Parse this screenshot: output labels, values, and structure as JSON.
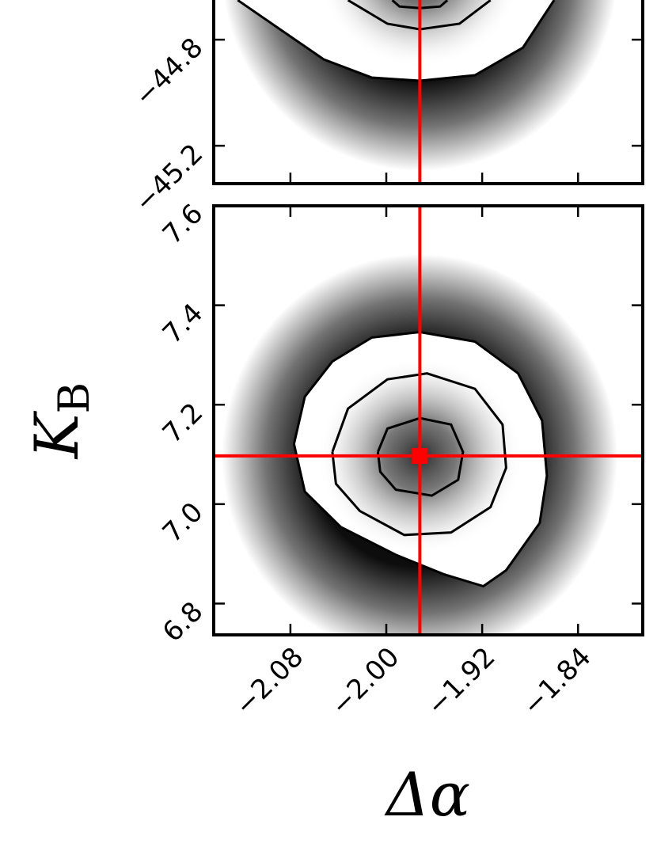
{
  "chart_data": [
    {
      "type": "contour",
      "xlim": [
        -2.144,
        -1.786
      ],
      "ylim": [
        -45.343,
        -43.725
      ],
      "xticks": [
        -2.08,
        -2.0,
        -1.92,
        -1.84
      ],
      "yticks": [
        {
          "value": -45.2,
          "label": "−45.2"
        },
        {
          "value": -44.8,
          "label": "−44.8"
        }
      ],
      "contour_color": "#000000",
      "truth_color": "#ff0000",
      "truth": {
        "x": -1.972
      },
      "contours": [
        {
          "x": [
            -2.124,
            -2.052,
            -2.012,
            -1.972,
            -1.926,
            -1.886,
            -1.86
          ],
          "y": [
            -44.651,
            -44.875,
            -44.943,
            -44.955,
            -44.934,
            -44.83,
            -44.651
          ]
        },
        {
          "x": [
            -2.032,
            -1.999,
            -1.972,
            -1.939,
            -1.913
          ],
          "y": [
            -44.651,
            -44.74,
            -44.761,
            -44.74,
            -44.651
          ]
        },
        {
          "x": [
            -1.995,
            -1.989,
            -1.972,
            -1.955,
            -1.949
          ],
          "y": [
            -44.651,
            -44.675,
            -44.681,
            -44.675,
            -44.651
          ]
        }
      ]
    },
    {
      "type": "contour",
      "ylabel": "K",
      "ylabel_sub": "B",
      "xlabel": "Δα",
      "xlim": [
        -2.144,
        -1.786
      ],
      "ylim": [
        6.737,
        7.6
      ],
      "xticks": [
        {
          "value": -2.08,
          "label": "−2.08"
        },
        {
          "value": -2.0,
          "label": "−2.00"
        },
        {
          "value": -1.92,
          "label": "−1.92"
        },
        {
          "value": -1.84,
          "label": "−1.84"
        }
      ],
      "yticks": [
        6.8,
        {
          "value": 7.0,
          "label": "7.0"
        },
        7.2,
        7.4,
        7.6
      ],
      "contour_color": "#000000",
      "truth_color": "#ff0000",
      "truth": {
        "x": -1.972,
        "y": 7.097
      },
      "contours": [
        {
          "x": [
            -2.077,
            -2.068,
            -2.045,
            -2.012,
            -1.972,
            -1.926,
            -1.89,
            -1.87,
            -1.866,
            -1.872,
            -1.9,
            -1.919,
            -1.952,
            -1.992,
            -2.038,
            -2.068,
            -2.077
          ],
          "y": [
            7.121,
            7.216,
            7.287,
            7.335,
            7.346,
            7.327,
            7.263,
            7.168,
            7.057,
            6.962,
            6.867,
            6.835,
            6.859,
            6.898,
            6.954,
            7.025,
            7.121
          ]
        },
        {
          "x": [
            -2.045,
            -2.032,
            -1.999,
            -1.966,
            -1.926,
            -1.903,
            -1.9,
            -1.913,
            -1.946,
            -1.985,
            -2.022,
            -2.042,
            -2.045
          ],
          "y": [
            7.105,
            7.192,
            7.251,
            7.263,
            7.232,
            7.16,
            7.073,
            6.994,
            6.943,
            6.938,
            6.986,
            7.041,
            7.105
          ]
        },
        {
          "x": [
            -2.007,
            -1.999,
            -1.972,
            -1.946,
            -1.936,
            -1.94,
            -1.962,
            -1.992,
            -2.005,
            -2.007
          ],
          "y": [
            7.105,
            7.152,
            7.173,
            7.16,
            7.105,
            7.049,
            7.017,
            7.029,
            7.065,
            7.105
          ]
        }
      ]
    }
  ]
}
